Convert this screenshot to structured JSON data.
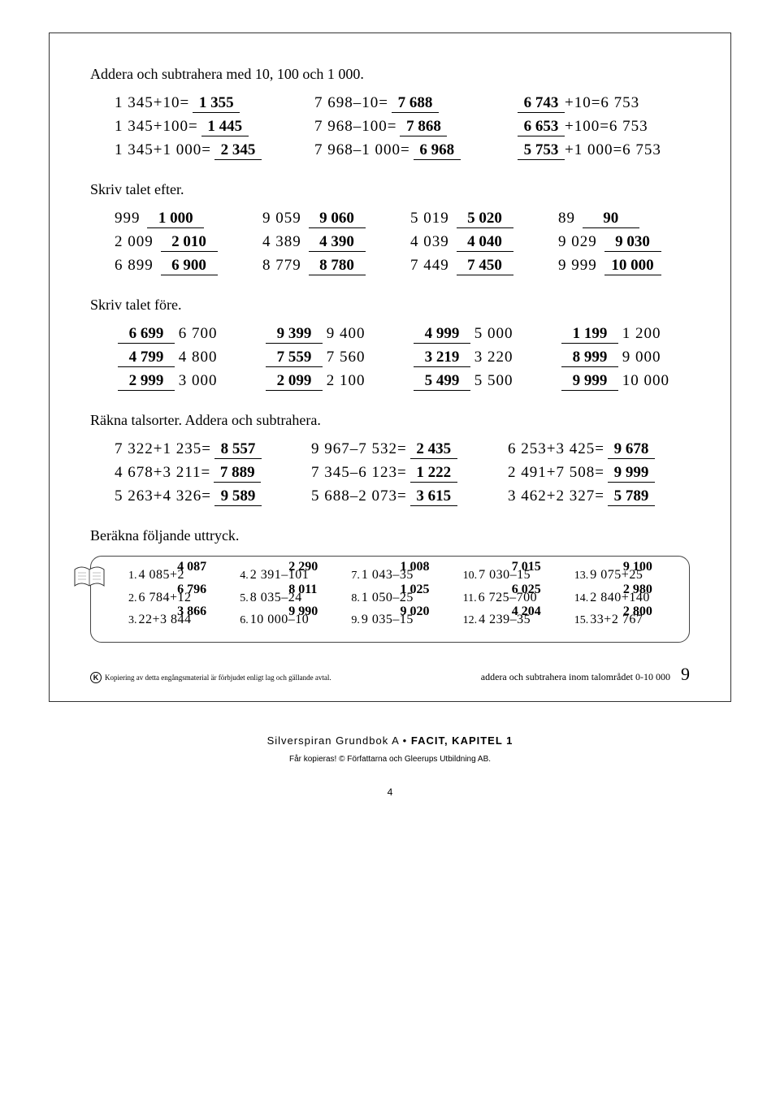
{
  "s1": {
    "heading": "Addera och subtrahera med 10, 100 och 1 000.",
    "rows": [
      [
        {
          "expr": "1 345+10=",
          "ans": "1 355"
        },
        {
          "expr": "7 698–10=",
          "ans": "7 688"
        },
        {
          "ans": "6 743",
          "expr_after": " +10=6 753",
          "ans_first": true
        }
      ],
      [
        {
          "expr": "1 345+100=",
          "ans": "1 445"
        },
        {
          "expr": "7 968–100=",
          "ans": "7 868"
        },
        {
          "ans": "6 653",
          "expr_after": " +100=6 753",
          "ans_first": true
        }
      ],
      [
        {
          "expr": "1 345+1 000=",
          "ans": "2 345"
        },
        {
          "expr": "7 968–1 000=",
          "ans": "6 968"
        },
        {
          "ans": "5 753",
          "expr_after": " +1 000=6 753",
          "ans_first": true
        }
      ]
    ]
  },
  "s2": {
    "heading": "Skriv talet efter.",
    "rows": [
      [
        {
          "g": "999",
          "a": "1 000"
        },
        {
          "g": "9 059",
          "a": "9 060"
        },
        {
          "g": "5 019",
          "a": "5 020"
        },
        {
          "g": "89",
          "a": "90"
        }
      ],
      [
        {
          "g": "2 009",
          "a": "2 010"
        },
        {
          "g": "4 389",
          "a": "4 390"
        },
        {
          "g": "4 039",
          "a": "4 040"
        },
        {
          "g": "9 029",
          "a": "9 030"
        }
      ],
      [
        {
          "g": "6 899",
          "a": "6 900"
        },
        {
          "g": "8 779",
          "a": "8 780"
        },
        {
          "g": "7 449",
          "a": "7 450"
        },
        {
          "g": "9 999",
          "a": "10 000"
        }
      ]
    ]
  },
  "s3": {
    "heading": "Skriv talet före.",
    "rows": [
      [
        {
          "a": "6 699",
          "g": "6 700"
        },
        {
          "a": "9 399",
          "g": "9 400"
        },
        {
          "a": "4 999",
          "g": "5 000"
        },
        {
          "a": "1 199",
          "g": "1 200"
        }
      ],
      [
        {
          "a": "4 799",
          "g": "4 800"
        },
        {
          "a": "7 559",
          "g": "7 560"
        },
        {
          "a": "3 219",
          "g": "3 220"
        },
        {
          "a": "8 999",
          "g": "9 000"
        }
      ],
      [
        {
          "a": "2 999",
          "g": "3 000"
        },
        {
          "a": "2 099",
          "g": "2 100"
        },
        {
          "a": "5 499",
          "g": "5 500"
        },
        {
          "a": "9 999",
          "g": "10 000"
        }
      ]
    ]
  },
  "s4": {
    "heading": "Räkna talsorter. Addera och subtrahera.",
    "rows": [
      [
        {
          "e": "7 322+1 235=",
          "a": "8 557"
        },
        {
          "e": "9 967–7 532=",
          "a": "2 435"
        },
        {
          "e": "6 253+3 425=",
          "a": "9 678"
        }
      ],
      [
        {
          "e": "4 678+3 211=",
          "a": "7 889"
        },
        {
          "e": "7 345–6 123=",
          "a": "1 222"
        },
        {
          "e": "2 491+7 508=",
          "a": "9 999"
        }
      ],
      [
        {
          "e": "5 263+4 326=",
          "a": "9 589"
        },
        {
          "e": "5 688–2 073=",
          "a": "3 615"
        },
        {
          "e": "3 462+2 327=",
          "a": "5 789"
        }
      ]
    ]
  },
  "s5": {
    "heading": "Beräkna följande uttryck.",
    "items": [
      {
        "n": "1.",
        "e": "4 085+2",
        "a": "4 087"
      },
      {
        "n": "4.",
        "e": "2 391–101",
        "a": "2 290"
      },
      {
        "n": "7.",
        "e": "1 043–35",
        "a": "1 008"
      },
      {
        "n": "10.",
        "e": "7 030–15",
        "a": "7 015"
      },
      {
        "n": "13.",
        "e": "9 075+25",
        "a": "9 100"
      },
      {
        "n": "2.",
        "e": "6 784+12",
        "a": "6 796"
      },
      {
        "n": "5.",
        "e": "8 035–24",
        "a": "8 011"
      },
      {
        "n": "8.",
        "e": "1 050–25",
        "a": "1 025"
      },
      {
        "n": "11.",
        "e": "6 725–700",
        "a": "6 025"
      },
      {
        "n": "14.",
        "e": "2 840+140",
        "a": "2 980"
      },
      {
        "n": "3.",
        "e": "22+3 844",
        "a": "3 866"
      },
      {
        "n": "6.",
        "e": "10 000–10",
        "a": "9 990"
      },
      {
        "n": "9.",
        "e": "9 035–15",
        "a": "9 020"
      },
      {
        "n": "12.",
        "e": "4 239–35",
        "a": "4 204"
      },
      {
        "n": "15.",
        "e": "33+2 767",
        "a": "2 800"
      }
    ]
  },
  "footer": {
    "k": "K",
    "copy": "Kopiering av detta engångsmaterial är förbjudet enligt lag och gällande avtal.",
    "topic": "addera och subtrahera inom talområdet 0-10 000",
    "pagenum": "9"
  },
  "below": {
    "title_a": "Silverspiran Grundbok A • ",
    "title_b": "FACIT, KAPITEL 1",
    "sub": "Får kopieras! © Författarna och Gleerups Utbildning AB.",
    "pg": "4"
  }
}
